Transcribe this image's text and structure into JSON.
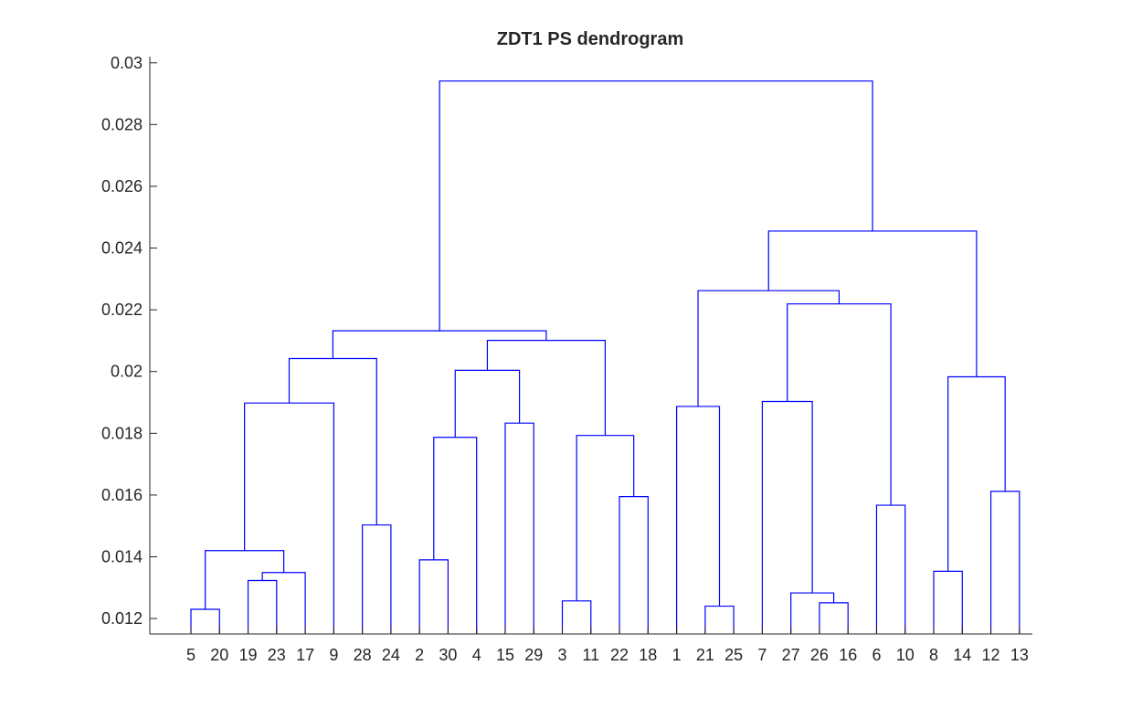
{
  "chart_data": {
    "type": "dendrogram",
    "title": "ZDT1 PS dendrogram",
    "xlabel": "",
    "ylabel": "",
    "ylim": [
      0.0115,
      0.0302
    ],
    "yticks": [
      0.012,
      0.014,
      0.016,
      0.018,
      0.02,
      0.022,
      0.024,
      0.026,
      0.028,
      0.03
    ],
    "ytick_labels": [
      "0.012",
      "0.014",
      "0.016",
      "0.018",
      "0.02",
      "0.022",
      "0.024",
      "0.026",
      "0.028",
      "0.03"
    ],
    "leaf_order": [
      "5",
      "20",
      "19",
      "23",
      "17",
      "9",
      "28",
      "24",
      "2",
      "30",
      "4",
      "15",
      "29",
      "3",
      "11",
      "22",
      "18",
      "1",
      "21",
      "25",
      "7",
      "27",
      "26",
      "16",
      "6",
      "10",
      "8",
      "14",
      "12",
      "13"
    ],
    "merges": [
      {
        "left": "5",
        "right": "20",
        "height": 0.0123
      },
      {
        "left": "19",
        "right": "23",
        "height": 0.01323
      },
      {
        "left": "19|23",
        "right": "17",
        "height": 0.01349
      },
      {
        "left": "5|20",
        "right": "19|23|17",
        "height": 0.0142
      },
      {
        "left": "5|20|19|23|17",
        "right": "9",
        "height": 0.01898
      },
      {
        "left": "28",
        "right": "24",
        "height": 0.01503
      },
      {
        "left": "5|20|19|23|17|9",
        "right": "28|24",
        "height": 0.02042
      },
      {
        "left": "2",
        "right": "30",
        "height": 0.0139
      },
      {
        "left": "2|30",
        "right": "4",
        "height": 0.01787
      },
      {
        "left": "15",
        "right": "29",
        "height": 0.01833
      },
      {
        "left": "2|30|4",
        "right": "15|29",
        "height": 0.02004
      },
      {
        "left": "3",
        "right": "11",
        "height": 0.01257
      },
      {
        "left": "22",
        "right": "18",
        "height": 0.01595
      },
      {
        "left": "3|11",
        "right": "22|18",
        "height": 0.01793
      },
      {
        "left": "2|30|4|15|29",
        "right": "3|11|22|18",
        "height": 0.02101
      },
      {
        "left": "5|20|19|23|17|9|28|24",
        "right": "2|30|4|15|29|3|11|22|18",
        "height": 0.02132
      },
      {
        "left": "21",
        "right": "25",
        "height": 0.0124
      },
      {
        "left": "1",
        "right": "21|25",
        "height": 0.01887
      },
      {
        "left": "26",
        "right": "16",
        "height": 0.01251
      },
      {
        "left": "27",
        "right": "26|16",
        "height": 0.01283
      },
      {
        "left": "7",
        "right": "27|26|16",
        "height": 0.01903
      },
      {
        "left": "6",
        "right": "10",
        "height": 0.01567
      },
      {
        "left": "7|27|26|16",
        "right": "6|10",
        "height": 0.02219
      },
      {
        "left": "1|21|25",
        "right": "7|27|26|16|6|10",
        "height": 0.02262
      },
      {
        "left": "8",
        "right": "14",
        "height": 0.01353
      },
      {
        "left": "12",
        "right": "13",
        "height": 0.01612
      },
      {
        "left": "8|14",
        "right": "12|13",
        "height": 0.01983
      },
      {
        "left": "1|21|25|7|27|26|16|6|10",
        "right": "8|14|12|13",
        "height": 0.02455
      },
      {
        "left": "5|20|19|23|17|9|28|24|2|30|4|15|29|3|11|22|18",
        "right": "1|21|25|7|27|26|16|6|10|8|14|12|13",
        "height": 0.02941
      }
    ],
    "line_color": "#0000ff",
    "grid": false,
    "legend": "none"
  }
}
